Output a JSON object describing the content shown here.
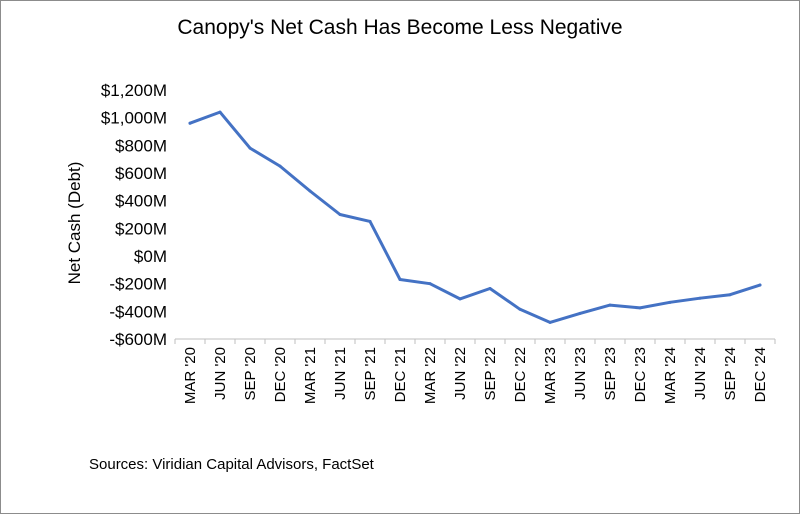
{
  "chart_data": {
    "type": "line",
    "title": "Canopy's Net Cash Has Become Less Negative",
    "ylabel": "Net Cash (Debt)",
    "xlabel": "",
    "ylim": [
      -600,
      1200
    ],
    "yticks": [
      -600,
      -400,
      -200,
      0,
      200,
      400,
      600,
      800,
      1000,
      1200
    ],
    "ytick_labels": [
      "-$600M",
      "-$400M",
      "-$200M",
      "$0M",
      "$200M",
      "$400M",
      "$600M",
      "$800M",
      "$1,000M",
      "$1,200M"
    ],
    "grid": false,
    "categories": [
      "MAR '20",
      "JUN '20",
      "SEP '20",
      "DEC '20",
      "MAR '21",
      "JUN '21",
      "SEP '21",
      "DEC '21",
      "MAR '22",
      "JUN '22",
      "SEP '22",
      "DEC '22",
      "MAR '23",
      "JUN '23",
      "SEP '23",
      "DEC '23",
      "MAR '24",
      "JUN '24",
      "SEP '24",
      "DEC '24"
    ],
    "series": [
      {
        "name": "Net Cash",
        "color": "#4472c4",
        "values": [
          960,
          1040,
          780,
          650,
          470,
          300,
          250,
          -170,
          -200,
          -310,
          -235,
          -385,
          -480,
          -415,
          -355,
          -375,
          -335,
          -305,
          -280,
          -210
        ]
      }
    ]
  },
  "source_text": "Sources: Viridian Capital Advisors, FactSet"
}
